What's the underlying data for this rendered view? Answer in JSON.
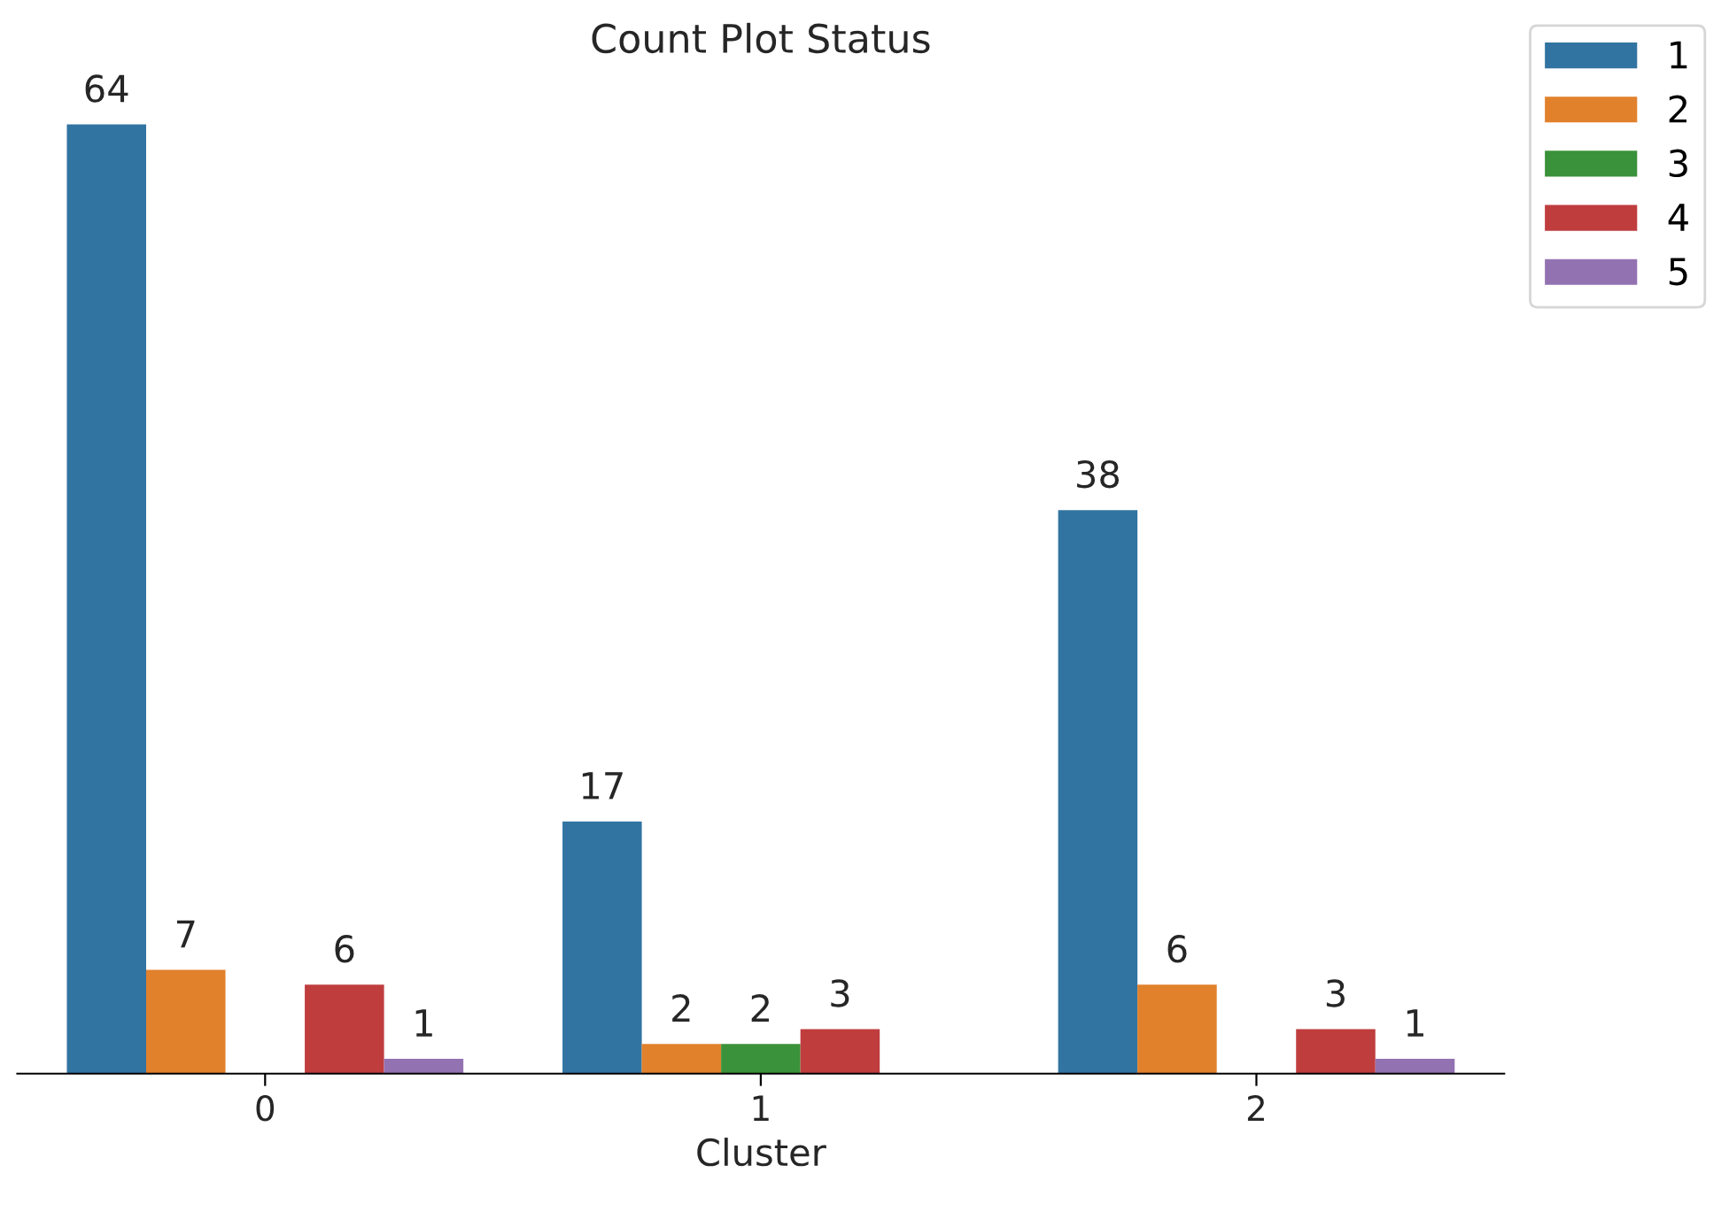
{
  "chart_data": {
    "type": "bar",
    "title": "Count Plot Status",
    "xlabel": "Cluster",
    "categories": [
      "0",
      "1",
      "2"
    ],
    "series": [
      {
        "name": "1",
        "color": "#3274a1",
        "values": [
          64,
          17,
          38
        ]
      },
      {
        "name": "2",
        "color": "#e1812c",
        "values": [
          7,
          2,
          6
        ]
      },
      {
        "name": "3",
        "color": "#3a923a",
        "values": [
          null,
          2,
          null
        ]
      },
      {
        "name": "4",
        "color": "#c03d3e",
        "values": [
          6,
          3,
          3
        ]
      },
      {
        "name": "5",
        "color": "#9372b2",
        "values": [
          1,
          null,
          1
        ]
      }
    ],
    "data_labels": true,
    "legend": "top right",
    "tick_labels": "x",
    "grid": false
  }
}
